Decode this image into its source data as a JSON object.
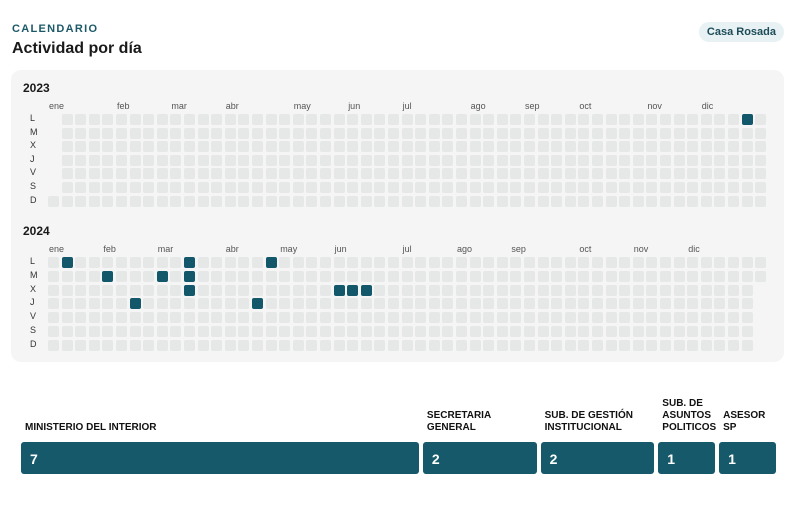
{
  "header": {
    "kicker": "CALENDARIO",
    "title": "Actividad por día",
    "source_badge": "Casa Rosada"
  },
  "colors": {
    "accent": "#12586a",
    "empty_cell": "#e6e8e7",
    "panel_bg": "#f4f5f4",
    "badge_bg": "#e8f1f4"
  },
  "calendar": {
    "weekdays": [
      "L",
      "M",
      "X",
      "J",
      "V",
      "S",
      "D"
    ],
    "years": [
      {
        "year": "2023",
        "months": [
          "ene",
          "feb",
          "mar",
          "abr",
          "may",
          "jun",
          "jul",
          "ago",
          "sep",
          "oct",
          "nov",
          "dic"
        ],
        "active_days": [
          {
            "date": "2023-12-18",
            "weekday": "L"
          }
        ]
      },
      {
        "year": "2024",
        "months": [
          "ene",
          "feb",
          "mar",
          "abr",
          "may",
          "jun",
          "jul",
          "ago",
          "sep",
          "oct",
          "nov",
          "dic"
        ],
        "active_days": [
          {
            "date": "2024-01-08",
            "weekday": "L"
          },
          {
            "date": "2024-01-30",
            "weekday": "M"
          },
          {
            "date": "2024-02-15",
            "weekday": "J"
          },
          {
            "date": "2024-02-27",
            "weekday": "M"
          },
          {
            "date": "2024-03-11",
            "weekday": "L"
          },
          {
            "date": "2024-03-12",
            "weekday": "M"
          },
          {
            "date": "2024-03-13",
            "weekday": "X"
          },
          {
            "date": "2024-04-18",
            "weekday": "J"
          },
          {
            "date": "2024-04-22",
            "weekday": "L"
          },
          {
            "date": "2024-05-29",
            "weekday": "X"
          },
          {
            "date": "2024-06-05",
            "weekday": "X"
          },
          {
            "date": "2024-06-12",
            "weekday": "X"
          }
        ]
      }
    ]
  },
  "breakdown": [
    {
      "label": "MINISTERIO DEL INTERIOR",
      "value": 7
    },
    {
      "label": "SECRETARIA GENERAL",
      "value": 2
    },
    {
      "label": "SUB. DE GESTIÓN INSTITUCIONAL",
      "value": 2
    },
    {
      "label": "SUB. DE ASUNTOS POLITICOS",
      "value": 1
    },
    {
      "label": "ASESOR SP",
      "value": 1
    }
  ]
}
